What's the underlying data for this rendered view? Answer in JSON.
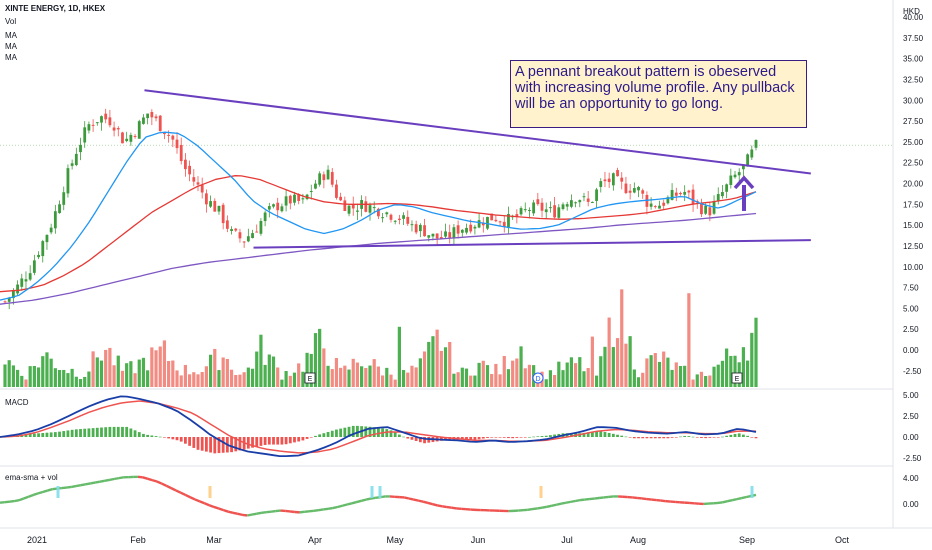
{
  "header": {
    "title": "XINTE ENERGY, 1D, HKEX",
    "currency": "HKD",
    "indicators": [
      "Vol",
      "MA",
      "MA",
      "MA"
    ]
  },
  "panels": {
    "macd_label": "MACD",
    "ema_label": "ema-sma + vol"
  },
  "annotation": "A pennant breakout pattern is obeserved with increasing volume profile. Any pullback will be an opportunity to go long.",
  "event_markers": [
    "E",
    "D",
    "E"
  ],
  "colors": {
    "up": "#26a69a",
    "candle_up": "#3c9a3c",
    "candle_down": "#ef5350",
    "vol_up": "#4caf50",
    "vol_down": "#f28b82",
    "ma_fast": "#2196f3",
    "ma_mid": "#e53935",
    "ma_slow": "#7e57c2",
    "trendline": "#6a3fbf",
    "arrow": "#6a3fbf",
    "macd_line": "#1a3ea8",
    "signal_line": "#ef5350"
  },
  "chart_data": [
    {
      "type": "candlestick",
      "title": "XINTE ENERGY, 1D, HKEX",
      "y_ticks": [
        "40.00",
        "37.50",
        "35.00",
        "32.50",
        "30.00",
        "27.50",
        "25.00",
        "22.50",
        "20.00",
        "17.50",
        "15.00",
        "12.50",
        "10.00",
        "7.50",
        "5.00",
        "2.50",
        "0.00",
        "-2.50"
      ],
      "ylim": [
        -3.5,
        40
      ],
      "x_ticks": [
        "2021",
        "Feb",
        "Mar",
        "Apr",
        "May",
        "Jun",
        "Jul",
        "Aug",
        "Sep",
        "Oct"
      ],
      "close_key": [
        5.8,
        7.5,
        9.5,
        12.5,
        15.5,
        20,
        24,
        27,
        28,
        27.5,
        25,
        26.5,
        28.5,
        27,
        25.5,
        22,
        20,
        18,
        16.5,
        14,
        13.2,
        14.5,
        16.5,
        17.5,
        18,
        17.7,
        20,
        21.5,
        18,
        17,
        17.5,
        17,
        16.5,
        16,
        15,
        14.5,
        13.5,
        13.5,
        14.5,
        15,
        15.5,
        16,
        15.5,
        16,
        17,
        17,
        16.5,
        18,
        18.5,
        17.5,
        20,
        20.5,
        19.5,
        19.5,
        17.5,
        17.5,
        18.5,
        19,
        17.5,
        16.5,
        18.5,
        20.5,
        22,
        24.5
      ],
      "ma_fast_key": [
        6,
        6.5,
        8,
        10,
        12.5,
        15.5,
        19,
        22.5,
        25.5,
        26.2,
        26,
        24.5,
        22.5,
        20.5,
        18,
        16.5,
        15.5,
        14.5,
        14,
        14.5,
        15.5,
        16.8,
        17.5,
        17.2,
        16.5,
        16,
        15.5,
        15.2,
        14.8,
        14.5,
        14.6,
        15,
        16,
        17,
        17.5,
        17.8,
        18,
        18.2,
        18.5,
        17.5,
        17,
        18,
        19
      ],
      "ma_mid_key": [
        7,
        7.2,
        7.8,
        9,
        10.5,
        12.5,
        14.5,
        16.5,
        18,
        19.5,
        20.5,
        21,
        20.5,
        19.5,
        18.5,
        17.8,
        17.5,
        17.5,
        17.6,
        17.5,
        17.2,
        16.8,
        16.5,
        16.2,
        16,
        15.8,
        15.7,
        15.8,
        16,
        16.2,
        16.5,
        17,
        17.5,
        17.8,
        18.2,
        19
      ],
      "ma_slow_key": [
        5.5,
        6,
        6.8,
        7.8,
        8.8,
        9.8,
        10.5,
        11,
        11.5,
        12,
        12.4,
        12.8,
        13.1,
        13.4,
        13.7,
        14,
        14.3,
        14.6,
        15,
        15.3,
        15.6,
        16,
        16.4
      ],
      "trendlines": [
        {
          "name": "upper",
          "points": [
            [
              0.155,
              31.2
            ],
            [
              0.87,
              21.2
            ]
          ]
        },
        {
          "name": "lower",
          "points": [
            [
              0.272,
              12.3
            ],
            [
              0.87,
              13.2
            ]
          ]
        }
      ],
      "volume_key": [
        2.2,
        0.9,
        2.5,
        1.5,
        1.0,
        3.2,
        1.2,
        2.0,
        2.8,
        1.3,
        1.4,
        2.6,
        0.8,
        3.1,
        1.0,
        1.7,
        3.6,
        1.1,
        2.2,
        1.4,
        0.9,
        1.6,
        4.0,
        1.0,
        1.8,
        1.2,
        3.5,
        0.8,
        1.4,
        1.9,
        0.9,
        6.7,
        1.3,
        2.4,
        1.5,
        0.8,
        1.6,
        2.9,
        4.3
      ]
    },
    {
      "type": "line",
      "title": "MACD",
      "y_ticks": [
        "5.00",
        "2.50",
        "0.00",
        "-2.50"
      ],
      "ylim": [
        -3,
        5.5
      ],
      "macd_key": [
        0,
        0.3,
        0.8,
        1.6,
        2.6,
        3.6,
        4.4,
        4.9,
        4.5,
        4.0,
        3.2,
        1.8,
        0.2,
        -1.0,
        -1.7,
        -2.0,
        -2.3,
        -2.2,
        -1.6,
        -0.8,
        0.3,
        1.0,
        1.2,
        0.5,
        -0.2,
        -0.3,
        -0.4,
        -0.6,
        -0.4,
        -0.6,
        -0.5,
        -0.3,
        0.2,
        0.6,
        1.2,
        1.1,
        0.7,
        0.5,
        0.4,
        0.6,
        0.3,
        0.4,
        1.0,
        0.6
      ],
      "signal_key": [
        0,
        0.1,
        0.5,
        1.2,
        2.0,
        2.9,
        3.6,
        4.1,
        4.3,
        4.0,
        3.5,
        2.8,
        1.5,
        0.2,
        -0.8,
        -1.4,
        -1.7,
        -1.9,
        -1.8,
        -1.4,
        -0.6,
        0.2,
        0.6,
        0.6,
        0.3,
        0.0,
        -0.2,
        -0.4,
        -0.4,
        -0.5,
        -0.5,
        -0.4,
        -0.1,
        0.3,
        0.7,
        0.9,
        0.8,
        0.6,
        0.5,
        0.5,
        0.4,
        0.4,
        0.7,
        0.7
      ]
    },
    {
      "type": "line",
      "title": "ema-sma + vol",
      "y_ticks": [
        "4.00",
        "0.00"
      ],
      "ylim": [
        -2.5,
        5
      ],
      "line_key": [
        0.2,
        0.5,
        1.5,
        2.3,
        2.6,
        3.1,
        3.6,
        4.1,
        4.2,
        3.4,
        2.1,
        0.8,
        -0.3,
        -1.2,
        -1.8,
        -1.3,
        -1.0,
        -1.3,
        -1.0,
        -0.6,
        0.1,
        0.8,
        1.2,
        1.0,
        0.4,
        -0.3,
        -0.7,
        -0.9,
        -1.0,
        -1.1,
        -0.9,
        -0.5,
        0.1,
        0.6,
        0.9,
        1.2,
        1.0,
        0.7,
        0.4,
        0.2,
        0.0,
        0.2,
        0.8,
        1.4
      ]
    }
  ]
}
